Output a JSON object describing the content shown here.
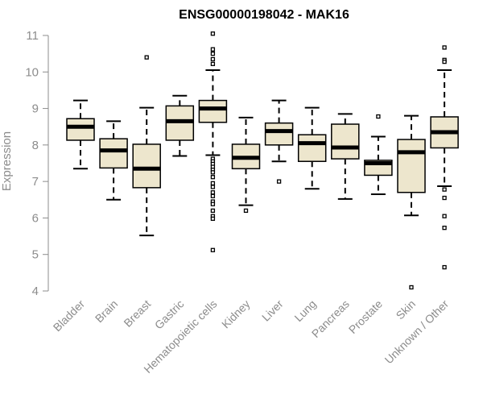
{
  "chart_data": {
    "type": "boxplot",
    "title": "ENSG00000198042 - MAK16",
    "xlabel": "",
    "ylabel": "Expression",
    "ylim": [
      4,
      11
    ],
    "yticks": [
      4,
      5,
      6,
      7,
      8,
      9,
      10,
      11
    ],
    "grid": false,
    "box_fill": "#ede6cd",
    "categories": [
      "Bladder",
      "Brain",
      "Breast",
      "Gastric",
      "Hematopoietic cells",
      "Kidney",
      "Liver",
      "Lung",
      "Pancreas",
      "Prostate",
      "Skin",
      "Unknown / Other"
    ],
    "boxes": [
      {
        "whisker_low": 7.35,
        "q1": 8.13,
        "median": 8.5,
        "q3": 8.72,
        "whisker_high": 9.22,
        "outliers": []
      },
      {
        "whisker_low": 6.5,
        "q1": 7.37,
        "median": 7.85,
        "q3": 8.17,
        "whisker_high": 8.65,
        "outliers": []
      },
      {
        "whisker_low": 5.52,
        "q1": 6.83,
        "median": 7.35,
        "q3": 8.02,
        "whisker_high": 9.02,
        "outliers": [
          10.4
        ]
      },
      {
        "whisker_low": 7.7,
        "q1": 8.13,
        "median": 8.65,
        "q3": 9.07,
        "whisker_high": 9.35,
        "outliers": []
      },
      {
        "whisker_low": 7.72,
        "q1": 8.62,
        "median": 9.0,
        "q3": 9.22,
        "whisker_high": 10.05,
        "outliers": [
          11.05,
          10.62,
          10.5,
          10.35,
          10.22,
          7.62,
          7.55,
          7.48,
          7.4,
          7.32,
          7.25,
          7.12,
          6.95,
          6.85,
          6.7,
          6.6,
          6.45,
          6.38,
          6.2,
          6.05,
          5.98,
          5.12
        ]
      },
      {
        "whisker_low": 6.35,
        "q1": 7.35,
        "median": 7.65,
        "q3": 8.02,
        "whisker_high": 8.75,
        "outliers": [
          6.2
        ]
      },
      {
        "whisker_low": 7.55,
        "q1": 8.0,
        "median": 8.38,
        "q3": 8.6,
        "whisker_high": 9.22,
        "outliers": [
          7.0
        ]
      },
      {
        "whisker_low": 6.8,
        "q1": 7.55,
        "median": 8.05,
        "q3": 8.28,
        "whisker_high": 9.02,
        "outliers": []
      },
      {
        "whisker_low": 6.52,
        "q1": 7.62,
        "median": 7.93,
        "q3": 8.57,
        "whisker_high": 8.85,
        "outliers": []
      },
      {
        "whisker_low": 6.65,
        "q1": 7.17,
        "median": 7.5,
        "q3": 7.58,
        "whisker_high": 8.23,
        "outliers": [
          8.78
        ]
      },
      {
        "whisker_low": 6.07,
        "q1": 6.7,
        "median": 7.8,
        "q3": 8.15,
        "whisker_high": 8.8,
        "outliers": [
          4.1
        ]
      },
      {
        "whisker_low": 6.87,
        "q1": 7.92,
        "median": 8.35,
        "q3": 8.77,
        "whisker_high": 10.05,
        "outliers": [
          10.67,
          10.33,
          10.28,
          6.78,
          6.55,
          6.05,
          5.73,
          4.65
        ]
      }
    ]
  }
}
